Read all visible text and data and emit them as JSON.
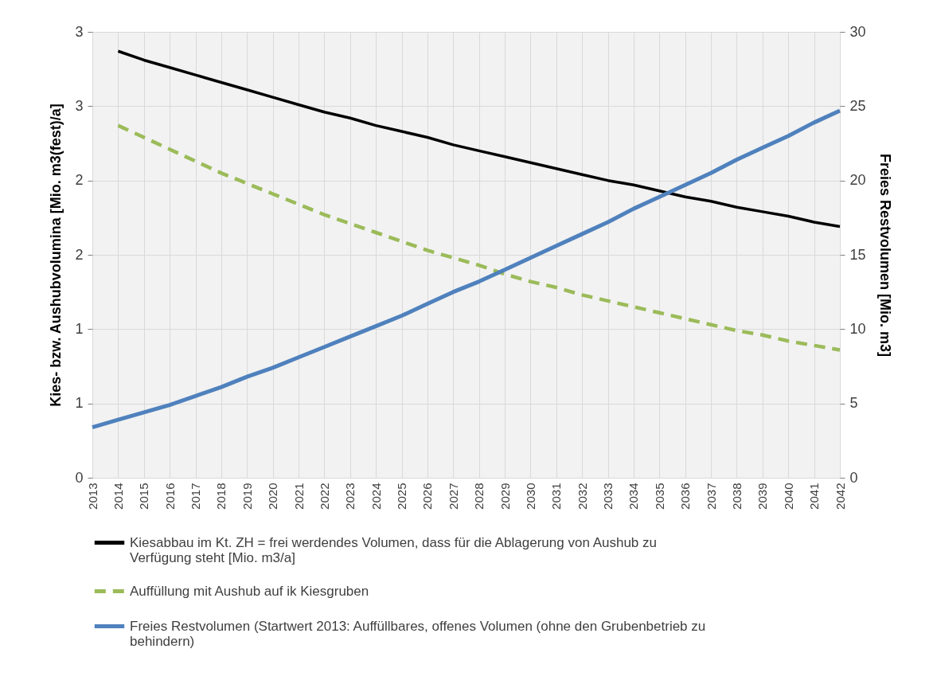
{
  "chart_data": {
    "type": "line",
    "categories": [
      "2013",
      "2014",
      "2015",
      "2016",
      "2017",
      "2018",
      "2019",
      "2020",
      "2021",
      "2022",
      "2023",
      "2024",
      "2025",
      "2026",
      "2027",
      "2028",
      "2029",
      "2030",
      "2031",
      "2032",
      "2033",
      "2034",
      "2035",
      "2036",
      "2037",
      "2038",
      "2039",
      "2040",
      "2041",
      "2042"
    ],
    "ylabel": "Kies- bzw. Aushubvolumina [Mio. m3(fest)/a]",
    "y2label": "Freies Restvolumen [Mio. m3]",
    "ylim": [
      0,
      3
    ],
    "yticks": [
      0,
      {
        "value": 0.5,
        "label": "1"
      },
      1,
      {
        "value": 1.5,
        "label": "2"
      },
      2,
      {
        "value": 2.5,
        "label": "3"
      },
      3
    ],
    "y2lim": [
      0,
      30
    ],
    "y2ticks": [
      0,
      5,
      10,
      15,
      20,
      25,
      30
    ],
    "grid": true,
    "legend": "bottom",
    "series": [
      {
        "name": "Kiesabbau im Kt. ZH = frei werdendes Volumen, dass für die Ablagerung von Aushub zu Verfügung steht [Mio. m3/a]",
        "color": "#000000",
        "line_style": "solid",
        "values": [
          null,
          2.87,
          2.81,
          2.76,
          2.71,
          2.66,
          2.61,
          2.56,
          2.51,
          2.46,
          2.42,
          2.37,
          2.33,
          2.29,
          2.24,
          2.2,
          2.16,
          2.12,
          2.08,
          2.04,
          2.0,
          1.97,
          1.93,
          1.89,
          1.86,
          1.82,
          1.79,
          1.76,
          1.72,
          1.69
        ]
      },
      {
        "name": "Auffüllung mit Aushub auf ik Kiesgruben",
        "color": "#9bbb59",
        "line_style": "dashed",
        "values": [
          null,
          2.37,
          2.29,
          2.21,
          2.13,
          2.05,
          1.98,
          1.91,
          1.84,
          1.77,
          1.71,
          1.65,
          1.59,
          1.53,
          1.48,
          1.43,
          1.37,
          1.32,
          1.28,
          1.23,
          1.19,
          1.15,
          1.11,
          1.07,
          1.03,
          0.99,
          0.96,
          0.92,
          0.89,
          0.86
        ]
      },
      {
        "name": "Freies Restvolumen (Startwert 2013: Auffüllbares, offenes Volumen (ohne den Grubenbetrieb zu behindern)",
        "color": "#4f81bd",
        "line_style": "solid",
        "axis": "y2",
        "values": [
          3.4,
          3.9,
          4.4,
          4.9,
          5.5,
          6.1,
          6.8,
          7.4,
          8.1,
          8.8,
          9.5,
          10.2,
          10.9,
          11.7,
          12.5,
          13.2,
          14.0,
          14.8,
          15.6,
          16.4,
          17.2,
          18.1,
          18.9,
          19.7,
          20.5,
          21.4,
          22.2,
          23.0,
          23.9,
          24.7
        ]
      }
    ]
  }
}
